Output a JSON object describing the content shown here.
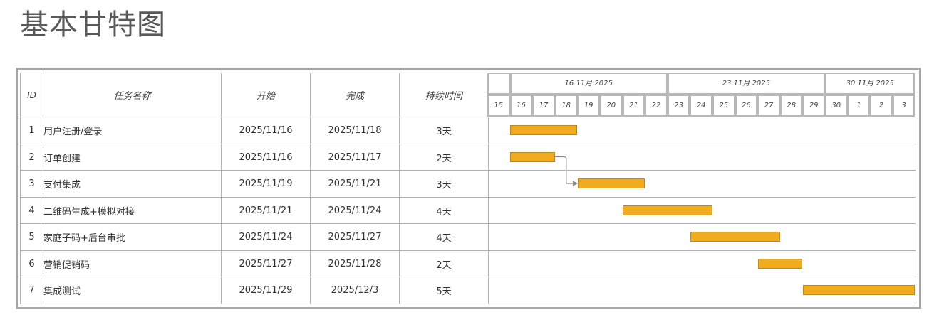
{
  "title": "基本甘特图",
  "columns": {
    "id": "ID",
    "name": "任务名称",
    "start": "开始",
    "finish": "完成",
    "duration": "持续时间"
  },
  "weeks": [
    "16 11月 2025",
    "23 11月 2025",
    "30 11月 2025"
  ],
  "days": [
    "15",
    "16",
    "17",
    "18",
    "19",
    "20",
    "21",
    "22",
    "23",
    "24",
    "25",
    "26",
    "27",
    "28",
    "29",
    "30",
    "1",
    "2",
    "3"
  ],
  "tasks": [
    {
      "id": "1",
      "name": "用户注册/登录",
      "start": "2025/11/16",
      "finish": "2025/11/18",
      "duration": "3天"
    },
    {
      "id": "2",
      "name": "订单创建",
      "start": "2025/11/16",
      "finish": "2025/11/17",
      "duration": "2天"
    },
    {
      "id": "3",
      "name": "支付集成",
      "start": "2025/11/19",
      "finish": "2025/11/21",
      "duration": "3天"
    },
    {
      "id": "4",
      "name": "二维码生成+模拟对接",
      "start": "2025/11/21",
      "finish": "2025/11/24",
      "duration": "4天"
    },
    {
      "id": "5",
      "name": "家庭子码+后台审批",
      "start": "2025/11/24",
      "finish": "2025/11/27",
      "duration": "4天"
    },
    {
      "id": "6",
      "name": "营销促销码",
      "start": "2025/11/27",
      "finish": "2025/11/28",
      "duration": "2天"
    },
    {
      "id": "7",
      "name": "集成测试",
      "start": "2025/11/29",
      "finish": "2025/12/3",
      "duration": "5天"
    }
  ],
  "bar_color": "#f0ab1f",
  "dependency": {
    "from_task": "2",
    "to_task": "3"
  }
}
